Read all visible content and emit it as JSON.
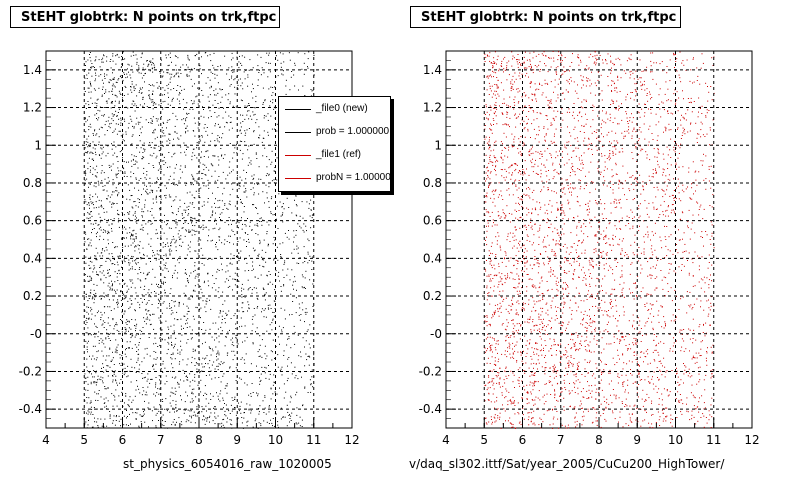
{
  "chart_data": [
    {
      "type": "scatter",
      "title": "StEHT globtrk: N points on trk,ftpc",
      "xlabel": "st_physics_6054016_raw_1020005",
      "ylabel": "",
      "xlim": [
        4,
        12
      ],
      "ylim": [
        -0.5,
        1.5
      ],
      "x_ticks": [
        "4",
        "5",
        "6",
        "7",
        "8",
        "9",
        "10",
        "11",
        "12"
      ],
      "y_ticks": [
        "-0.4",
        "-0.2",
        "-0",
        "0.2",
        "0.4",
        "0.6",
        "0.8",
        "1",
        "1.2",
        "1.4"
      ],
      "grid": true,
      "marker_color": "#000000",
      "x_categories": [
        5,
        6,
        7,
        8,
        9,
        10,
        11
      ],
      "legend": {
        "placement": "top-right",
        "entries": [
          {
            "label": "_file0 (new)",
            "color": "#000000"
          },
          {
            "label": "prob = 1.000000",
            "color": "#000000"
          },
          {
            "label": "_file1 (ref)",
            "color": "#cc0000"
          },
          {
            "label": "probN = 1.000000",
            "color": "#cc0000"
          }
        ]
      }
    },
    {
      "type": "scatter",
      "title": "StEHT globtrk: N points on trk,ftpc",
      "xlabel": "v/daq_sl302.ittf/Sat/year_2005/CuCu200_HighTower/",
      "ylabel": "",
      "xlim": [
        4,
        12
      ],
      "ylim": [
        -0.5,
        1.5
      ],
      "x_ticks": [
        "4",
        "5",
        "6",
        "7",
        "8",
        "9",
        "10",
        "11",
        "12"
      ],
      "y_ticks": [
        "-0.4",
        "-0.2",
        "-0",
        "0.2",
        "0.4",
        "0.6",
        "0.8",
        "1",
        "1.2",
        "1.4"
      ],
      "grid": true,
      "marker_color": "#cc0000",
      "x_categories": [
        5,
        6,
        7,
        8,
        9,
        10,
        11
      ]
    }
  ]
}
